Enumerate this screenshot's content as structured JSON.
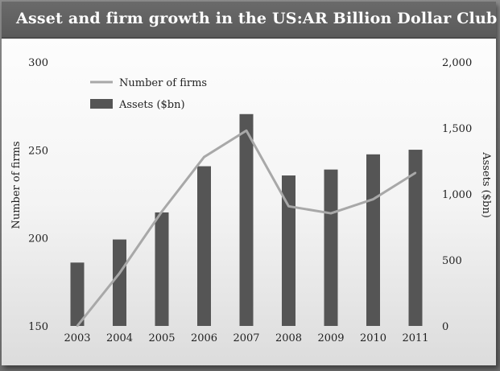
{
  "title": "Asset and firm growth in the US:AR Billion Dollar Club",
  "chart_data": {
    "type": "bar",
    "categories": [
      "2003",
      "2004",
      "2005",
      "2006",
      "2007",
      "2008",
      "2009",
      "2010",
      "2011"
    ],
    "series": [
      {
        "name": "Assets ($bn)",
        "kind": "bar",
        "axis": "right",
        "values": [
          480,
          655,
          860,
          1210,
          1605,
          1140,
          1185,
          1300,
          1335
        ]
      },
      {
        "name": "Number of firms",
        "kind": "line",
        "axis": "left",
        "values": [
          150,
          180,
          215,
          246,
          261,
          218,
          214,
          222,
          237
        ]
      }
    ],
    "y_left": {
      "label": "Number of firms",
      "lim": [
        150,
        300
      ],
      "ticks": [
        "150",
        "200",
        "250",
        "300"
      ],
      "tick_values": [
        150,
        200,
        250,
        300
      ]
    },
    "y_right": {
      "label": "Assets ($bn)",
      "lim": [
        0,
        2000
      ],
      "ticks": [
        "0",
        "500",
        "1,000",
        "1,500",
        "2,000"
      ],
      "tick_values": [
        0,
        500,
        1000,
        1500,
        2000
      ]
    },
    "legend_placement": "top-left",
    "grid": false,
    "colors": {
      "bar": "#555555",
      "line": "#a8a8a8"
    }
  }
}
